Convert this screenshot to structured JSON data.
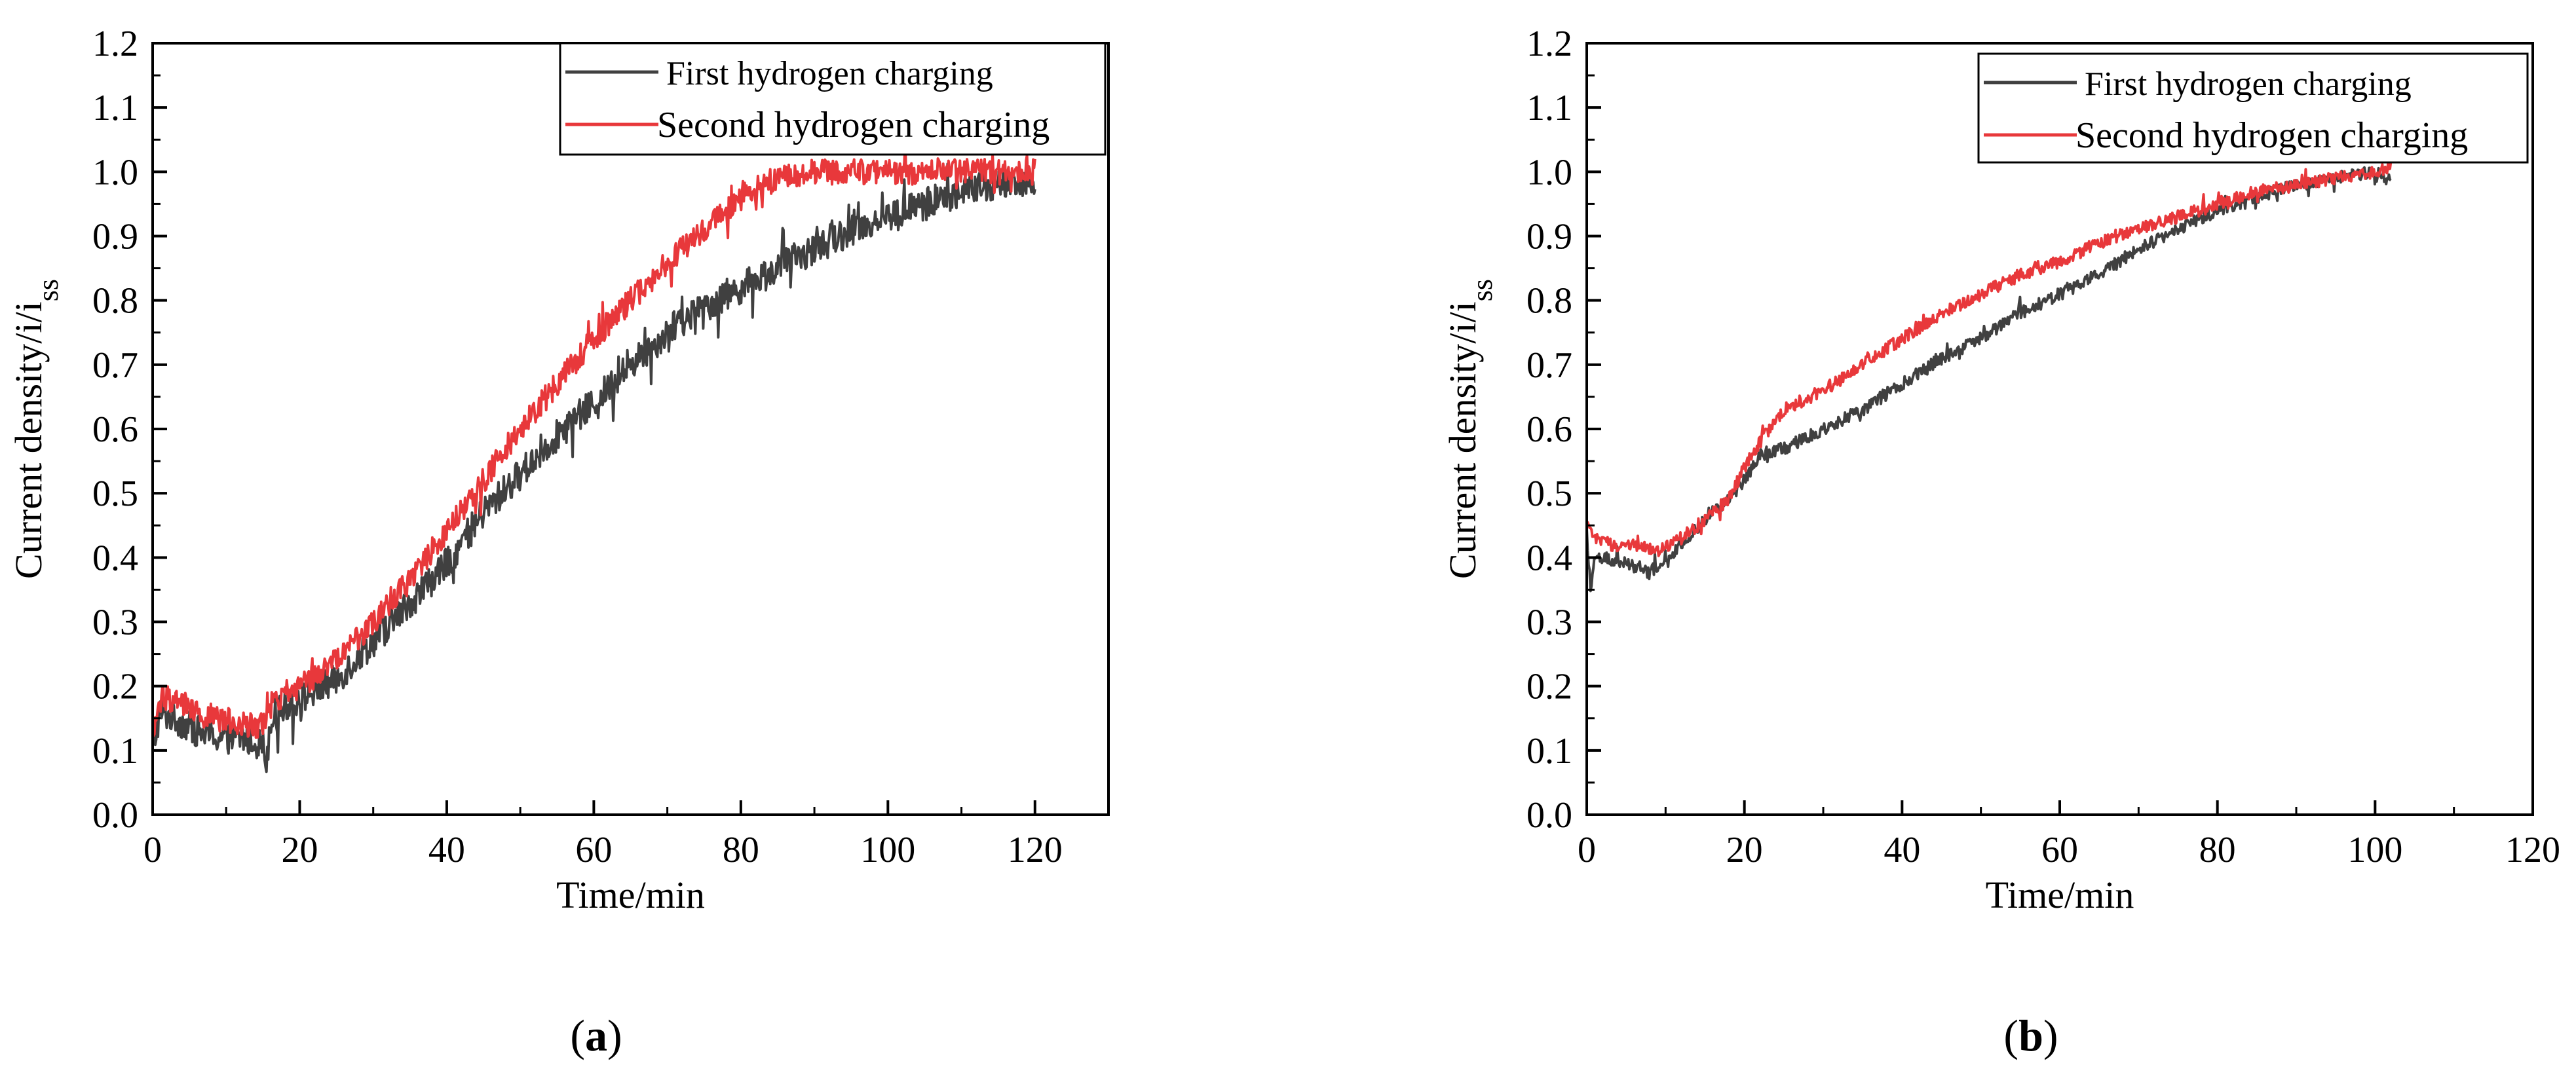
{
  "chart_data": [
    {
      "type": "line",
      "panel_label": "(a)",
      "xlabel": "Time/min",
      "ylabel": "Current density/i/i",
      "ylabel_subscript": "ss",
      "xlim": [
        0,
        130
      ],
      "ylim": [
        0,
        1.2
      ],
      "xticks": [
        0,
        20,
        40,
        60,
        80,
        100,
        120
      ],
      "yticks": [
        "0.0",
        "0.1",
        "0.2",
        "0.3",
        "0.4",
        "0.5",
        "0.6",
        "0.7",
        "0.8",
        "0.9",
        "1.0",
        "1.1",
        "1.2"
      ],
      "legend_position": "top-right",
      "series": [
        {
          "name": "First hydrogen charging",
          "color": "#404040",
          "noise": 0.025,
          "x": [
            0,
            1,
            3,
            6,
            9,
            12,
            15,
            15.5,
            16,
            18,
            20,
            25,
            30,
            35,
            40,
            45,
            50,
            55,
            60,
            65,
            70,
            75,
            80,
            85,
            90,
            95,
            100,
            105,
            110,
            115,
            120
          ],
          "y": [
            0.1,
            0.16,
            0.15,
            0.13,
            0.12,
            0.12,
            0.11,
            0.08,
            0.15,
            0.17,
            0.18,
            0.21,
            0.27,
            0.33,
            0.39,
            0.47,
            0.53,
            0.59,
            0.64,
            0.7,
            0.75,
            0.79,
            0.82,
            0.85,
            0.88,
            0.91,
            0.93,
            0.95,
            0.97,
            0.98,
            0.99
          ]
        },
        {
          "name": "Second hydrogen charging",
          "color": "#e8383b",
          "noise": 0.02,
          "x": [
            0,
            1,
            3,
            6,
            9,
            12,
            15,
            16,
            18,
            20,
            25,
            30,
            35,
            40,
            45,
            50,
            55,
            60,
            65,
            70,
            75,
            80,
            85,
            90,
            95,
            100,
            110,
            120
          ],
          "y": [
            0.12,
            0.18,
            0.18,
            0.16,
            0.15,
            0.14,
            0.14,
            0.17,
            0.19,
            0.2,
            0.24,
            0.3,
            0.37,
            0.44,
            0.52,
            0.6,
            0.67,
            0.74,
            0.8,
            0.86,
            0.91,
            0.96,
            0.99,
            1.0,
            1.0,
            1.0,
            1.0,
            1.0
          ]
        }
      ]
    },
    {
      "type": "line",
      "panel_label": "(b)",
      "xlabel": "Time/min",
      "ylabel": "Current density/i/i",
      "ylabel_subscript": "ss",
      "xlim": [
        0,
        120
      ],
      "ylim": [
        0,
        1.2
      ],
      "xticks": [
        0,
        20,
        40,
        60,
        80,
        100,
        120
      ],
      "yticks": [
        "0.0",
        "0.1",
        "0.2",
        "0.3",
        "0.4",
        "0.5",
        "0.6",
        "0.7",
        "0.8",
        "0.9",
        "1.0",
        "1.1",
        "1.2"
      ],
      "legend_position": "top-right",
      "series": [
        {
          "name": "First hydrogen charging",
          "color": "#404040",
          "noise": 0.01,
          "x": [
            0,
            0.5,
            1,
            2,
            5,
            8,
            10,
            12,
            15,
            18,
            20,
            22,
            25,
            30,
            35,
            40,
            45,
            50,
            55,
            60,
            65,
            70,
            75,
            80,
            85,
            90,
            95,
            100,
            102
          ],
          "y": [
            0.44,
            0.35,
            0.4,
            0.4,
            0.39,
            0.38,
            0.39,
            0.42,
            0.46,
            0.49,
            0.52,
            0.56,
            0.57,
            0.6,
            0.63,
            0.67,
            0.71,
            0.74,
            0.78,
            0.81,
            0.84,
            0.88,
            0.91,
            0.94,
            0.96,
            0.98,
            0.99,
            1.0,
            0.99
          ]
        },
        {
          "name": "Second hydrogen charging",
          "color": "#e8383b",
          "noise": 0.01,
          "x": [
            0,
            1,
            3,
            6,
            9,
            12,
            15,
            18,
            20,
            22,
            24,
            25,
            30,
            35,
            40,
            45,
            50,
            55,
            60,
            65,
            70,
            75,
            80,
            85,
            90,
            95,
            100,
            102
          ],
          "y": [
            0.45,
            0.43,
            0.42,
            0.42,
            0.41,
            0.43,
            0.46,
            0.49,
            0.54,
            0.58,
            0.61,
            0.63,
            0.66,
            0.7,
            0.74,
            0.78,
            0.81,
            0.84,
            0.86,
            0.89,
            0.91,
            0.93,
            0.95,
            0.97,
            0.98,
            0.99,
            1.0,
            1.01
          ]
        }
      ]
    }
  ]
}
